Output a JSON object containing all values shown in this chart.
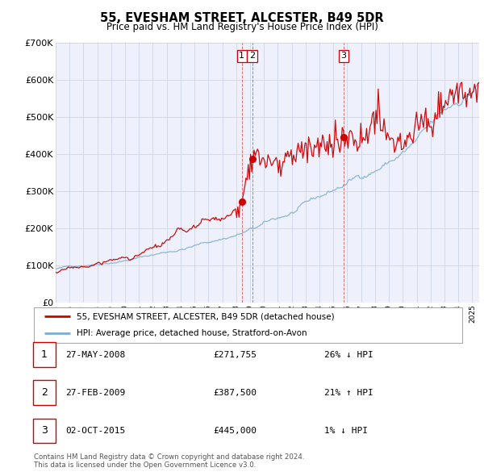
{
  "title1": "55, EVESHAM STREET, ALCESTER, B49 5DR",
  "title2": "Price paid vs. HM Land Registry's House Price Index (HPI)",
  "legend_red": "55, EVESHAM STREET, ALCESTER, B49 5DR (detached house)",
  "legend_blue": "HPI: Average price, detached house, Stratford-on-Avon",
  "footer1": "Contains HM Land Registry data © Crown copyright and database right 2024.",
  "footer2": "This data is licensed under the Open Government Licence v3.0.",
  "transactions": [
    {
      "num": 1,
      "date": "27-MAY-2008",
      "price": "£271,755",
      "hpi": "26% ↓ HPI"
    },
    {
      "num": 2,
      "date": "27-FEB-2009",
      "price": "£387,500",
      "hpi": "21% ↑ HPI"
    },
    {
      "num": 3,
      "date": "02-OCT-2015",
      "price": "£445,000",
      "hpi": "1% ↓ HPI"
    }
  ],
  "vline1_x": 2008.41,
  "vline2_x": 2009.16,
  "vline3_x": 2015.75,
  "dot1_y": 271755,
  "dot2_y": 387500,
  "dot3_y": 445000,
  "ylim": [
    0,
    700000
  ],
  "xlim_start": 1995.0,
  "xlim_end": 2025.5,
  "bg_color": "#eef1fb",
  "grid_color": "#c8cfe8",
  "red_color": "#cc0000",
  "blue_color": "#7aadd4",
  "vline_color": "#dd4444"
}
